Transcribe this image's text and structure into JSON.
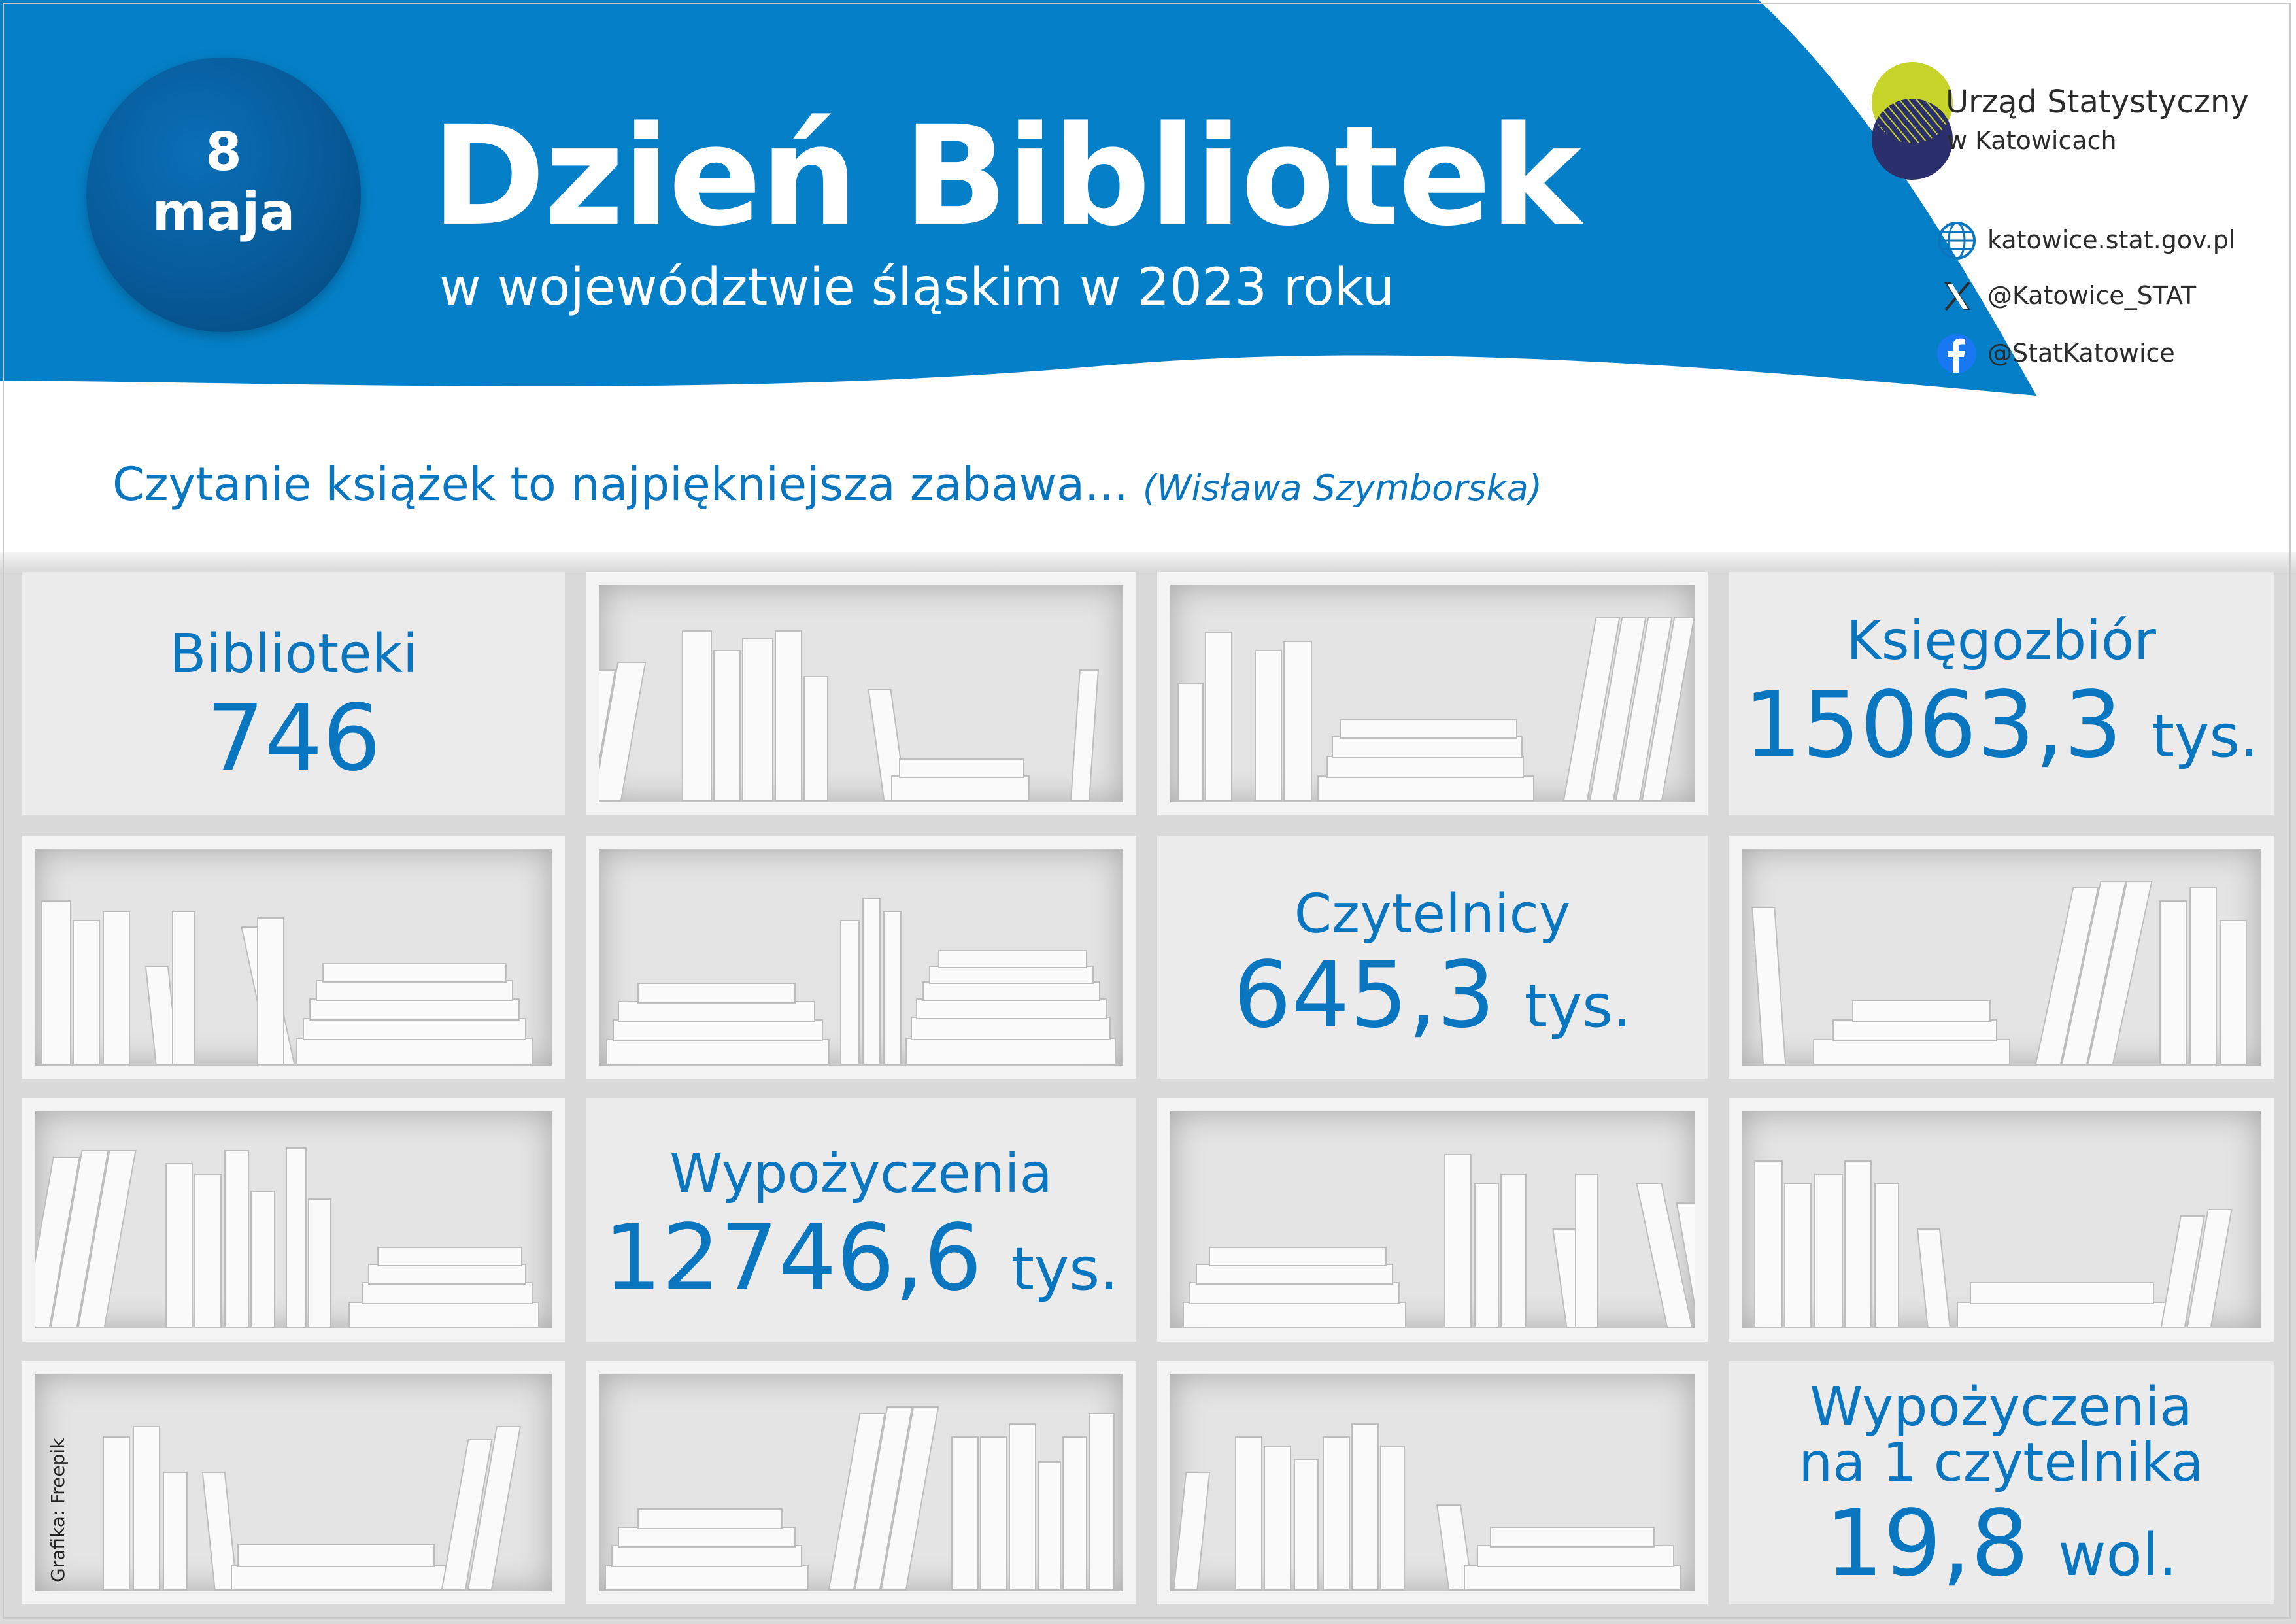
{
  "header": {
    "day": "8",
    "month": "maja",
    "title": "Dzień Bibliotek",
    "subtitle": "w województwie śląskim w 2023 roku"
  },
  "organization": {
    "name_line1": "Urząd Statystyczny",
    "name_line2": "w Katowicach",
    "links": [
      {
        "icon": "globe-icon",
        "text": "katowice.stat.gov.pl"
      },
      {
        "icon": "x-logo-icon",
        "text": "@Katowice_STAT"
      },
      {
        "icon": "facebook-icon",
        "text": "@StatKatowice"
      }
    ]
  },
  "quote": {
    "text": "Czytanie książek to najpiękniejsza zabawa...",
    "author": "(Wisława Szymborska)"
  },
  "stats": {
    "libraries": {
      "label": "Biblioteki",
      "value": "746"
    },
    "collection": {
      "label": "Księgozbiór",
      "value": "15063,3",
      "unit": "tys."
    },
    "readers": {
      "label": "Czytelnicy",
      "value": "645,3",
      "unit": "tys."
    },
    "loans": {
      "label": "Wypożyczenia",
      "value": "12746,6",
      "unit": "tys."
    },
    "loans_per_reader": {
      "label_line1": "Wypożyczenia",
      "label_line2": "na 1 czytelnika",
      "value": "19,8",
      "unit": "wol."
    }
  },
  "credit": "Grafika: Freepik",
  "colors": {
    "blue": "#0a76c0",
    "header_blue": "#0580c8",
    "badge_blue": "#075a98",
    "shelf_gray": "#e4e4e4",
    "logo_green": "#c6d42a",
    "logo_navy": "#2b2f6b"
  }
}
